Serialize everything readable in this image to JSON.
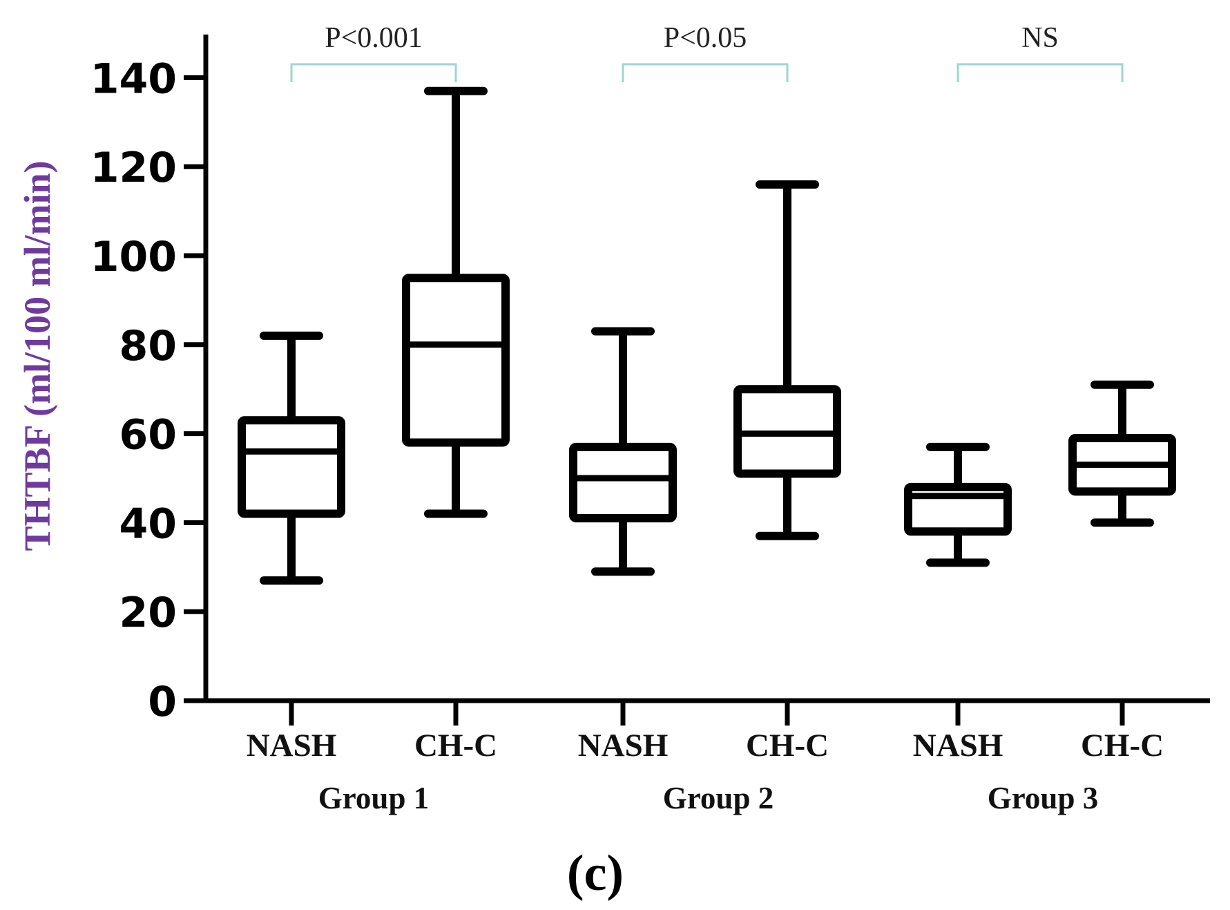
{
  "chart_data": {
    "type": "boxplot",
    "ylabel": "THTBF (ml/100 ml/min)",
    "ylim": [
      0,
      150
    ],
    "yticks": [
      0,
      20,
      40,
      60,
      80,
      100,
      120,
      140
    ],
    "ytick_labels": [
      "0",
      "20",
      "40",
      "60",
      "80",
      "100",
      "120",
      "140"
    ],
    "panel_label": "(c)",
    "groups": [
      {
        "name": "Group 1",
        "significance": "P<0.001",
        "boxes": [
          {
            "category": "NASH",
            "min": 27,
            "q1": 42,
            "median": 56,
            "q3": 63,
            "max": 82
          },
          {
            "category": "CH-C",
            "min": 42,
            "q1": 58,
            "median": 80,
            "q3": 95,
            "max": 137
          }
        ]
      },
      {
        "name": "Group 2",
        "significance": "P<0.05",
        "boxes": [
          {
            "category": "NASH",
            "min": 29,
            "q1": 41,
            "median": 50,
            "q3": 57,
            "max": 83
          },
          {
            "category": "CH-C",
            "min": 37,
            "q1": 51,
            "median": 60,
            "q3": 70,
            "max": 116
          }
        ]
      },
      {
        "name": "Group 3",
        "significance": "NS",
        "boxes": [
          {
            "category": "NASH",
            "min": 31,
            "q1": 38,
            "median": 46,
            "q3": 48,
            "max": 57
          },
          {
            "category": "CH-C",
            "min": 40,
            "q1": 47,
            "median": 53,
            "q3": 59,
            "max": 71
          }
        ]
      }
    ]
  },
  "colors": {
    "ylabel": "#6f3a9e",
    "bracket": "#9fd4d4",
    "box_stroke": "#000000"
  }
}
